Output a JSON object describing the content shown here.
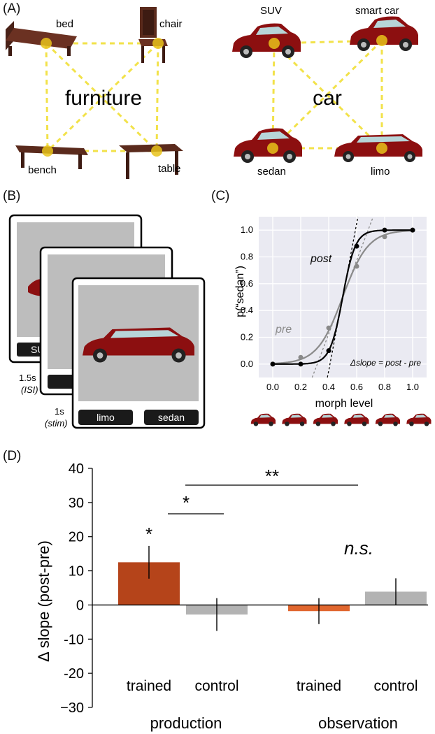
{
  "panel_labels": {
    "a": "(A)",
    "b": "(B)",
    "c": "(C)",
    "d": "(D)"
  },
  "panel_a": {
    "furniture": {
      "category": "furniture",
      "items": [
        "bed",
        "chair",
        "bench",
        "table"
      ]
    },
    "car": {
      "category": "car",
      "items": [
        "SUV",
        "smart car",
        "sedan",
        "limo"
      ]
    }
  },
  "panel_b": {
    "card1_button": "SU",
    "isi_time": "1.5s",
    "isi_label": "(ISI)",
    "stim_time": "1s",
    "stim_label": "(stim)",
    "option_left": "limo",
    "option_right": "sedan"
  },
  "colors": {
    "production_trained": "#b5441a",
    "observation_trained": "#e0662e",
    "control": "#b3b3b3",
    "node": "#e8c21a",
    "edge": "#f2e24a",
    "car": "#8c0f10",
    "post": "#000000",
    "pre": "#8a8a8a"
  },
  "chart_data": [
    {
      "type": "line",
      "panel": "C",
      "xlabel": "morph level",
      "ylabel": "p(“sedan”)",
      "xlim": [
        -0.1,
        1.1
      ],
      "ylim": [
        -0.1,
        1.1
      ],
      "xticks": [
        "0.0",
        "0.2",
        "0.4",
        "0.6",
        "0.8",
        "1.0"
      ],
      "yticks": [
        "0.0",
        "0.2",
        "0.4",
        "0.6",
        "0.8",
        "1.0"
      ],
      "grid": true,
      "x": [
        0.0,
        0.2,
        0.4,
        0.6,
        0.8,
        1.0
      ],
      "series": [
        {
          "name": "post",
          "values": [
            0.0,
            0.0,
            0.1,
            0.88,
            1.0,
            1.0
          ]
        },
        {
          "name": "pre",
          "values": [
            0.0,
            0.05,
            0.27,
            0.73,
            0.95,
            1.0
          ]
        }
      ],
      "annotation": "Δslope = post - pre"
    },
    {
      "type": "bar",
      "panel": "D",
      "ylabel": "Δ slope (post-pre)",
      "ylim": [
        -30,
        40
      ],
      "yticks": [
        "40",
        "30",
        "20",
        "10",
        "0",
        "-10",
        "-20",
        "−30"
      ],
      "categories": [
        "trained",
        "control",
        "trained",
        "control"
      ],
      "groups": [
        "production",
        "observation"
      ],
      "values": [
        12.5,
        -2.8,
        -1.8,
        3.9
      ],
      "error": [
        4.8,
        4.8,
        3.8,
        3.9
      ],
      "significance": {
        "star_bar1": "*",
        "bracket1": "*",
        "bracket2": "**",
        "ns": "n.s."
      }
    }
  ]
}
